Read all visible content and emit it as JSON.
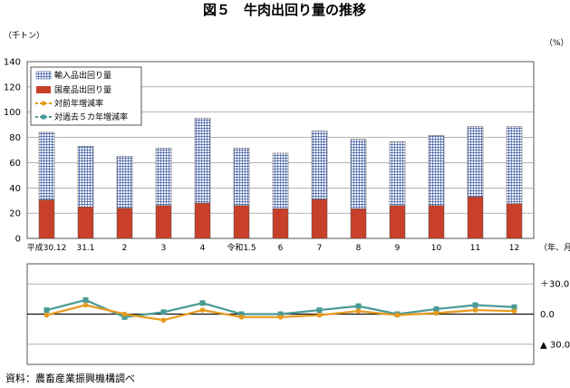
{
  "figure": {
    "title": "図５　牛肉出回り量の推移",
    "unit_left": "（千トン）",
    "unit_right": "（%）",
    "x_unit": "（年、月）",
    "source": "資料：農畜産業振興機構調べ"
  },
  "chart_data": [
    {
      "type": "bar",
      "stacked": true,
      "categories": [
        "平成30.12",
        "31.1",
        "2",
        "3",
        "4",
        "令和1.5",
        "6",
        "7",
        "8",
        "9",
        "10",
        "11",
        "12"
      ],
      "series": [
        {
          "name": "国産品出回り量",
          "values": [
            30.5,
            25,
            24,
            26,
            28,
            26,
            23.5,
            31,
            23.5,
            26,
            26,
            33,
            27.5
          ],
          "color": "#c8402a"
        },
        {
          "name": "輸入品出回り量",
          "values": [
            53.5,
            48,
            41,
            45.5,
            67,
            45.5,
            44,
            54,
            55,
            50.5,
            55.5,
            55.5,
            61
          ],
          "color": "#ffffff",
          "pattern": "grid-blue"
        }
      ],
      "ylim": [
        0,
        140
      ],
      "yticks": [
        "0",
        "20",
        "40",
        "60",
        "80",
        "100",
        "120",
        "140"
      ],
      "grid": true,
      "legend_position": "top-left"
    },
    {
      "type": "line",
      "categories": [
        "平成30.12",
        "31.1",
        "2",
        "3",
        "4",
        "令和1.5",
        "6",
        "7",
        "8",
        "9",
        "10",
        "11",
        "12"
      ],
      "series": [
        {
          "name": "対前年増減率",
          "values": [
            -1,
            9,
            0,
            -6,
            4,
            -3,
            -3,
            -1,
            3,
            -1,
            1,
            4,
            3
          ],
          "color": "#e69a1c",
          "marker": "circle"
        },
        {
          "name": "対過去５カ年増減率",
          "values": [
            4,
            14,
            -3,
            2,
            11,
            0,
            0,
            4,
            8,
            0,
            5,
            9,
            7
          ],
          "color": "#4a9a96",
          "marker": "square"
        }
      ],
      "ylim": [
        -50,
        50
      ],
      "ytick_labels": [
        "＋30.0",
        "0.0",
        "▲ 30.0"
      ],
      "yticks": [
        30,
        0,
        -30
      ],
      "grid": true
    }
  ]
}
